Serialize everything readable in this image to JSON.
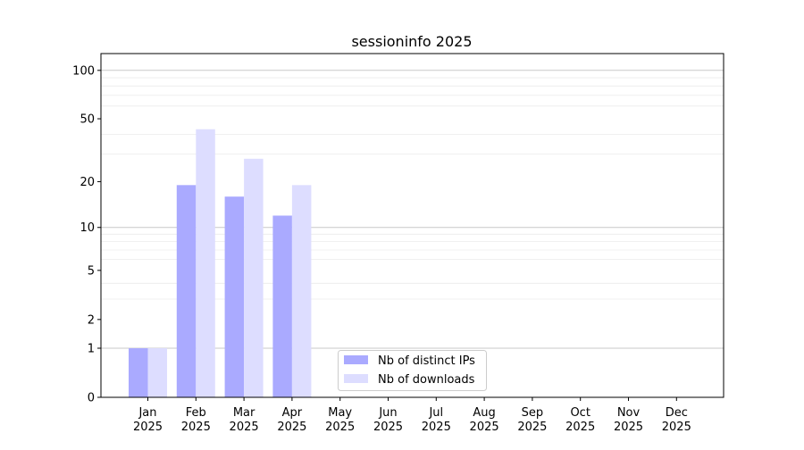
{
  "chart_data": {
    "type": "bar",
    "title": "sessioninfo 2025",
    "xlabel": "",
    "ylabel": "",
    "yscale": "symlog (log of 1+y)",
    "ylim": [
      0,
      120
    ],
    "yticks": [
      0,
      1,
      2,
      5,
      10,
      20,
      50,
      100
    ],
    "grid": true,
    "legend_position": "bottom-center",
    "categories": [
      "Jan\n2025",
      "Feb\n2025",
      "Mar\n2025",
      "Apr\n2025",
      "May\n2025",
      "Jun\n2025",
      "Jul\n2025",
      "Aug\n2025",
      "Sep\n2025",
      "Oct\n2025",
      "Nov\n2025",
      "Dec\n2025"
    ],
    "series": [
      {
        "name": "Nb of distinct IPs",
        "color": "#aaaaff",
        "values": [
          1,
          19,
          16,
          12,
          0,
          0,
          0,
          0,
          0,
          0,
          0,
          0
        ]
      },
      {
        "name": "Nb of downloads",
        "color": "#ddddff",
        "values": [
          1,
          43,
          28,
          19,
          0,
          0,
          0,
          0,
          0,
          0,
          0,
          0
        ]
      }
    ]
  }
}
